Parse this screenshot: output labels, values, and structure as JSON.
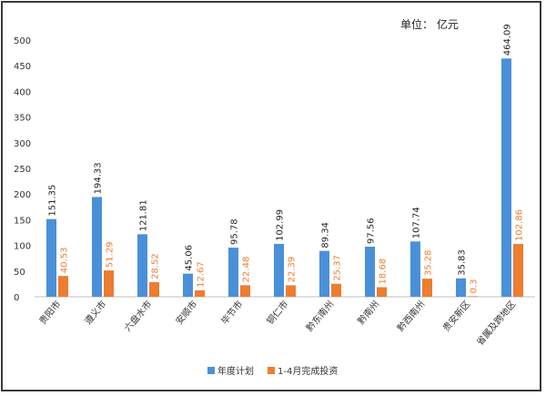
{
  "unit_label": "单位： 亿元",
  "chart_data": {
    "type": "bar",
    "title": "",
    "xlabel": "",
    "ylabel": "",
    "ylim": [
      0,
      500
    ],
    "yticks": [
      0,
      50,
      100,
      150,
      200,
      250,
      300,
      350,
      400,
      450,
      500
    ],
    "grid": false,
    "legend_position": "bottom",
    "categories": [
      "贵阳市",
      "遵义市",
      "六盘水市",
      "安顺市",
      "毕节市",
      "铜仁市",
      "黔东南州",
      "黔南州",
      "黔西南州",
      "贵安新区",
      "省属及跨地区"
    ],
    "series": [
      {
        "name": "年度计划",
        "color": "#4a90d9",
        "values": [
          151.35,
          194.33,
          121.81,
          45.06,
          95.78,
          102.99,
          89.34,
          97.56,
          107.74,
          35.83,
          464.09
        ],
        "labels": [
          "151.35",
          "194.33",
          "121.81",
          "45.06",
          "95.78",
          "102.99",
          "89.34",
          "97.56",
          "107.74",
          "35.83",
          "464.09"
        ]
      },
      {
        "name": "1-4月完成投资",
        "color": "#ed7d31",
        "values": [
          40.53,
          51.29,
          28.52,
          12.67,
          22.48,
          22.39,
          25.37,
          18.68,
          35.28,
          0.3,
          102.86
        ],
        "labels": [
          "40.53",
          "51.29",
          "28.52",
          "12.67",
          "22.48",
          "22.39",
          "25.37",
          "18.68",
          "35.28",
          "0.3",
          "102.86"
        ]
      }
    ]
  }
}
